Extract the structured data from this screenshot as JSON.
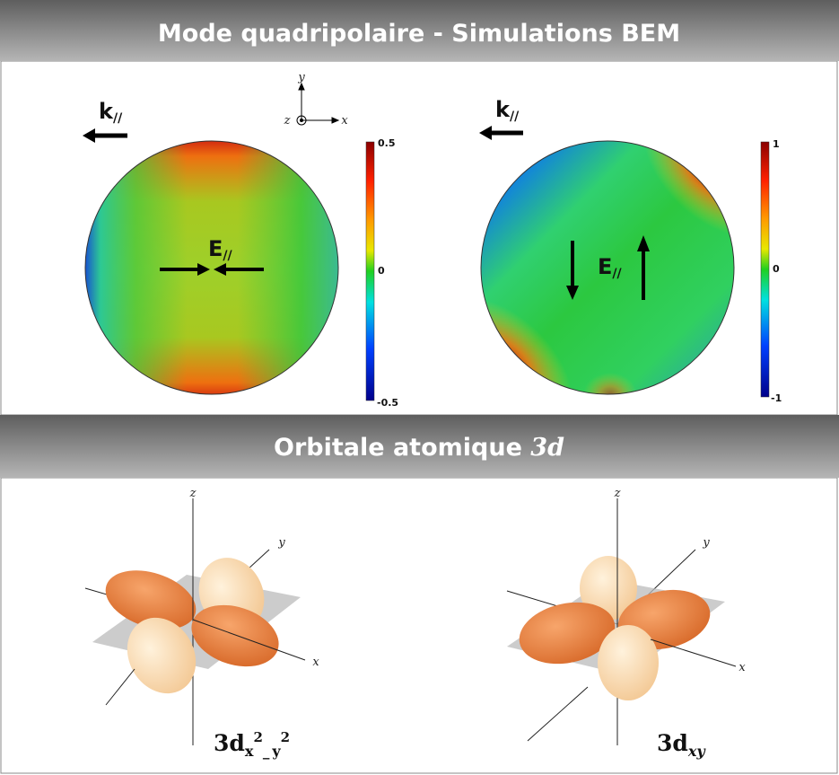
{
  "header": {
    "title": "Mode quadripolaire - Simulations BEM"
  },
  "coordinate_axes": {
    "y": "y",
    "z": "z",
    "x": "x"
  },
  "panels": [
    {
      "wavevector": {
        "symbol": "k",
        "subscript": "//"
      },
      "field": {
        "symbol": "E",
        "subscript": "//"
      },
      "colorbar": {
        "top": "0.5",
        "middle": "0",
        "bottom": "-0.5"
      }
    },
    {
      "wavevector": {
        "symbol": "k",
        "subscript": "//"
      },
      "field": {
        "symbol": "E",
        "subscript": "//"
      },
      "colorbar": {
        "top": "1",
        "middle": "0",
        "bottom": "-1"
      }
    }
  ],
  "section": {
    "text": "Orbitale atomique",
    "symbol": "3d"
  },
  "orbitals": [
    {
      "axes": {
        "z": "z",
        "y": "y",
        "x": "x"
      },
      "label": [
        "3d",
        "x",
        "2",
        "_",
        "y",
        "2"
      ]
    },
    {
      "axes": {
        "z": "z",
        "y": "y",
        "x": "x"
      },
      "label": [
        "3d",
        "xy"
      ]
    }
  ]
}
